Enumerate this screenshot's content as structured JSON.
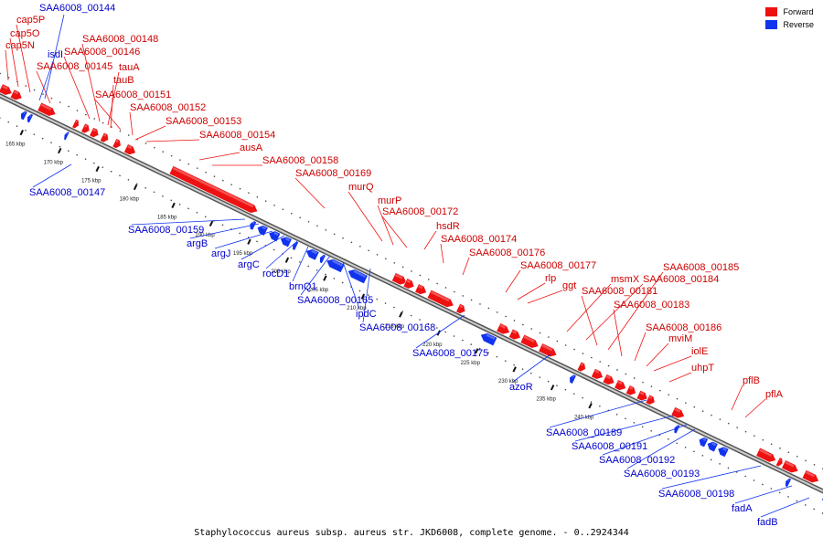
{
  "legend": [
    {
      "label": "Forward",
      "color": "#ee1111"
    },
    {
      "label": "Reverse",
      "color": "#1133ee"
    }
  ],
  "caption": "Staphylococcus aureus subsp. aureus str. JKD6008, complete genome. - 0..2924344",
  "colors": {
    "forward": "#ee1111",
    "reverse": "#1133ee",
    "backbone": "#777777"
  },
  "scale": {
    "unit": "kbp",
    "ticks": [
      165,
      170,
      175,
      180,
      185,
      190,
      195,
      200,
      205,
      210,
      215,
      220,
      225,
      230,
      235,
      240
    ]
  },
  "forward_genes": [
    "cap5N",
    "cap5O",
    "cap5P",
    "SAA6008_00145",
    "SAA6008_00146",
    "SAA6008_00148",
    "tauA",
    "tauB",
    "SAA6008_00151",
    "SAA6008_00152",
    "SAA6008_00153",
    "SAA6008_00154",
    "ausA",
    "SAA6008_00158",
    "SAA6008_00169",
    "murQ",
    "murP",
    "SAA6008_00172",
    "hsdR",
    "SAA6008_00174",
    "SAA6008_00176",
    "SAA6008_00177",
    "rlp",
    "ggt",
    "msmX",
    "SAA6008_00184",
    "SAA6008_00185",
    "SAA6008_00181",
    "SAA6008_00183",
    "SAA6008_00186",
    "mviM",
    "iolE",
    "uhpT",
    "pflB",
    "pflA"
  ],
  "reverse_genes": [
    "SAA6008_00144",
    "isdI",
    "SAA6008_00147",
    "SAA6008_00159",
    "argB",
    "argJ",
    "argC",
    "rocD1",
    "brnQ1",
    "SAA6008_00165",
    "ipdC",
    "SAA6008_00168",
    "SAA6008_00175",
    "azoR",
    "SAA6008_00189",
    "SAA6008_00191",
    "SAA6008_00192",
    "SAA6008_00193",
    "SAA6008_00198",
    "fadA",
    "fadB"
  ]
}
